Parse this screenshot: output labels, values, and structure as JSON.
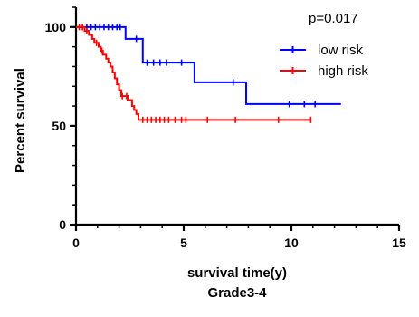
{
  "chart_data": {
    "type": "line",
    "subtype": "kaplan-meier",
    "title": "",
    "xlabel": "survival time(y)",
    "xlabel_sub": "Grade3-4",
    "ylabel": "Percent survival",
    "xlim": [
      0,
      15
    ],
    "ylim": [
      0,
      110
    ],
    "x_ticks": [
      0,
      5,
      10,
      15
    ],
    "x_tick_labels": [
      "0",
      "5",
      "10",
      "15"
    ],
    "y_ticks": [
      0,
      50,
      100
    ],
    "y_tick_labels": [
      "0",
      "50",
      "100"
    ],
    "grid": false,
    "legend_position": "top-right",
    "annotation": "p=0.017",
    "series": [
      {
        "name": "low risk",
        "color": "#0000ff",
        "steps": [
          [
            0,
            100
          ],
          [
            2.3,
            100
          ],
          [
            2.3,
            94
          ],
          [
            3.1,
            94
          ],
          [
            3.1,
            82
          ],
          [
            5.5,
            82
          ],
          [
            5.5,
            72
          ],
          [
            7.9,
            72
          ],
          [
            7.9,
            61
          ],
          [
            12.3,
            61
          ]
        ],
        "censors": [
          [
            0.3,
            100
          ],
          [
            0.5,
            100
          ],
          [
            0.7,
            100
          ],
          [
            0.9,
            100
          ],
          [
            1.1,
            100
          ],
          [
            1.3,
            100
          ],
          [
            1.5,
            100
          ],
          [
            1.7,
            100
          ],
          [
            1.9,
            100
          ],
          [
            2.05,
            100
          ],
          [
            2.8,
            94
          ],
          [
            3.3,
            82
          ],
          [
            3.6,
            82
          ],
          [
            3.9,
            82
          ],
          [
            4.2,
            82
          ],
          [
            4.9,
            82
          ],
          [
            7.3,
            72
          ],
          [
            9.9,
            61
          ],
          [
            10.6,
            61
          ],
          [
            11.1,
            61
          ]
        ]
      },
      {
        "name": "high risk",
        "color": "#ff0000",
        "steps": [
          [
            0,
            100
          ],
          [
            0.4,
            100
          ],
          [
            0.4,
            98
          ],
          [
            0.6,
            98
          ],
          [
            0.6,
            96
          ],
          [
            0.75,
            96
          ],
          [
            0.75,
            94
          ],
          [
            0.85,
            94
          ],
          [
            0.85,
            92
          ],
          [
            1.05,
            92
          ],
          [
            1.05,
            90
          ],
          [
            1.15,
            90
          ],
          [
            1.15,
            88
          ],
          [
            1.25,
            88
          ],
          [
            1.25,
            86
          ],
          [
            1.4,
            86
          ],
          [
            1.4,
            84
          ],
          [
            1.5,
            84
          ],
          [
            1.5,
            82
          ],
          [
            1.6,
            82
          ],
          [
            1.6,
            80
          ],
          [
            1.7,
            80
          ],
          [
            1.7,
            77
          ],
          [
            1.8,
            77
          ],
          [
            1.8,
            74
          ],
          [
            1.9,
            74
          ],
          [
            1.9,
            71
          ],
          [
            2.0,
            71
          ],
          [
            2.0,
            68
          ],
          [
            2.1,
            68
          ],
          [
            2.1,
            65
          ],
          [
            2.25,
            65
          ],
          [
            2.25,
            65
          ],
          [
            2.4,
            65
          ],
          [
            2.4,
            63
          ],
          [
            2.6,
            63
          ],
          [
            2.6,
            60
          ],
          [
            2.7,
            60
          ],
          [
            2.7,
            58
          ],
          [
            2.8,
            58
          ],
          [
            2.8,
            56
          ],
          [
            2.9,
            56
          ],
          [
            2.9,
            53
          ],
          [
            10.9,
            53
          ]
        ],
        "censors": [
          [
            0.15,
            100
          ],
          [
            0.3,
            100
          ],
          [
            0.5,
            98
          ],
          [
            0.95,
            92
          ],
          [
            1.2,
            88
          ],
          [
            2.15,
            65
          ],
          [
            2.35,
            65
          ],
          [
            3.1,
            53
          ],
          [
            3.3,
            53
          ],
          [
            3.5,
            53
          ],
          [
            3.7,
            53
          ],
          [
            3.9,
            53
          ],
          [
            4.1,
            53
          ],
          [
            4.3,
            53
          ],
          [
            4.6,
            53
          ],
          [
            4.9,
            53
          ],
          [
            5.1,
            53
          ],
          [
            6.1,
            53
          ],
          [
            7.4,
            53
          ],
          [
            9.4,
            53
          ],
          [
            10.9,
            53
          ]
        ]
      }
    ]
  }
}
